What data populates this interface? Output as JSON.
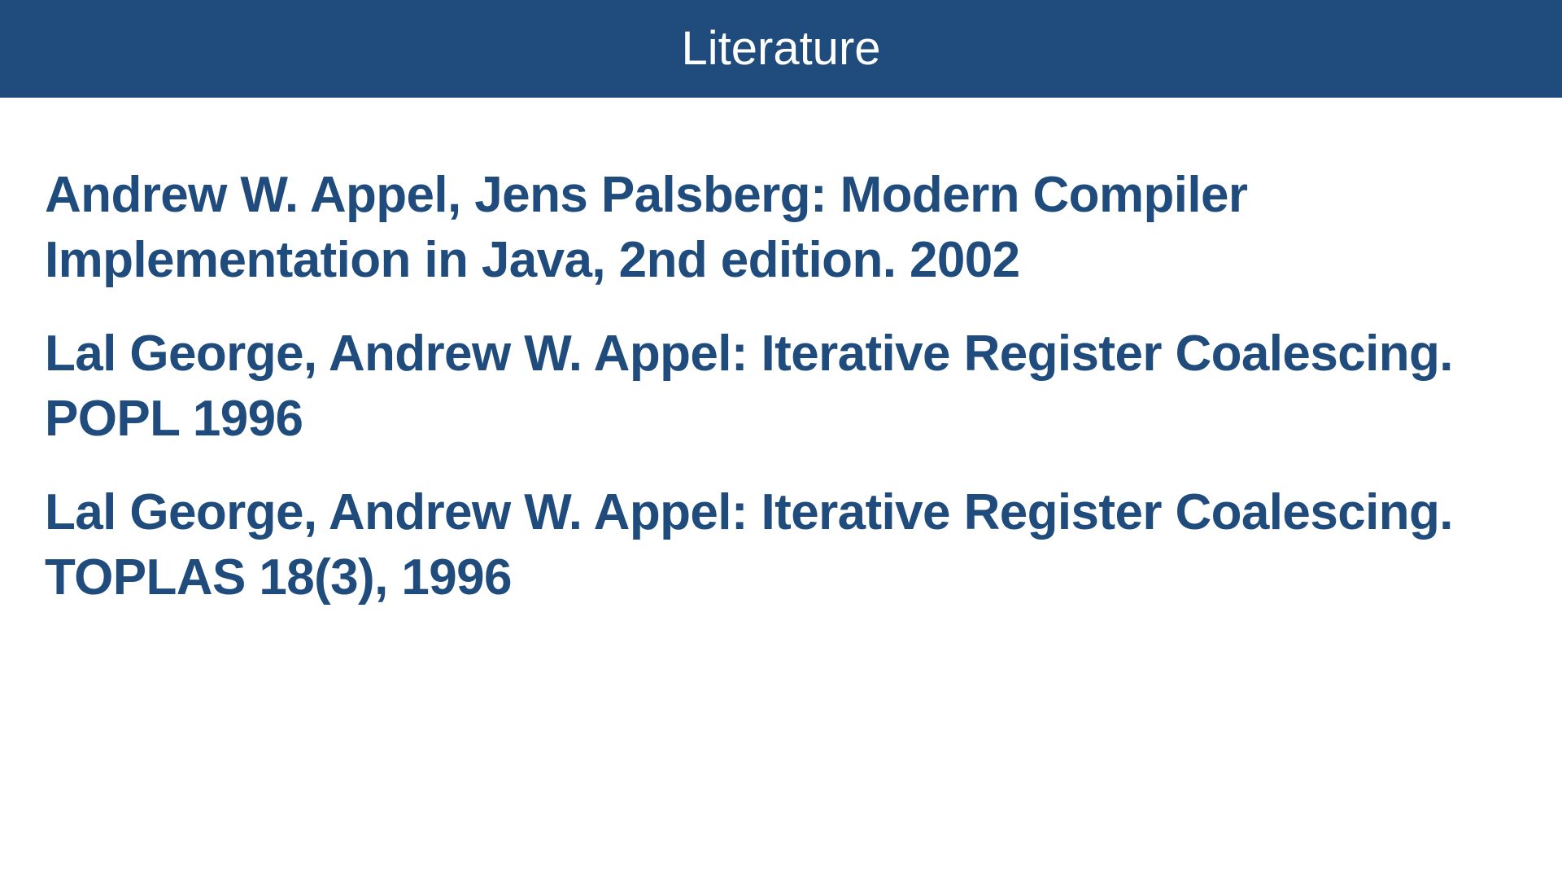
{
  "slide": {
    "title": "Literature",
    "references": [
      {
        "line1": "Andrew W. Appel, Jens Palsberg: Modern Compiler",
        "line2": "Implementation in Java, 2nd edition. 2002"
      },
      {
        "line1": "Lal George, Andrew W. Appel: Iterative Register Coalescing.",
        "line2": "POPL 1996"
      },
      {
        "line1": "Lal George, Andrew W. Appel: Iterative Register Coalescing.",
        "line2": "TOPLAS 18(3), 1996"
      }
    ]
  },
  "colors": {
    "title_bar": "#1f4c7c",
    "title_text": "#ffffff",
    "body_text": "#1f4c7c",
    "background": "#ffffff"
  }
}
